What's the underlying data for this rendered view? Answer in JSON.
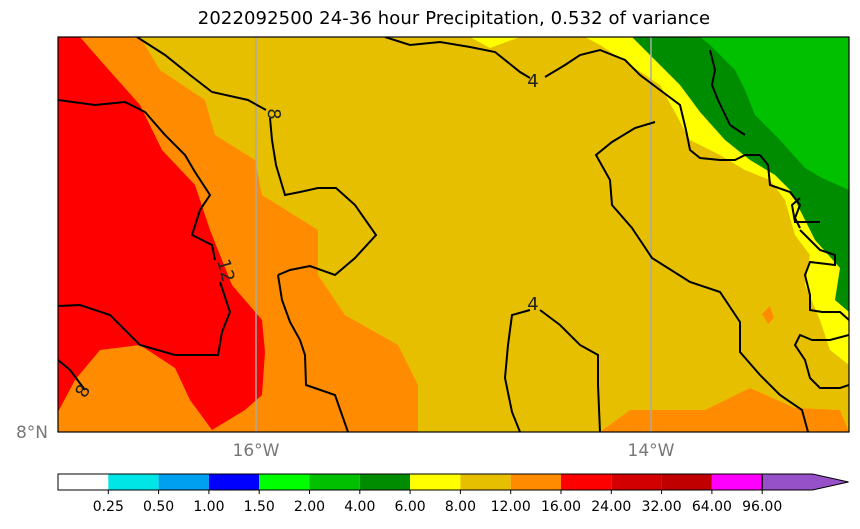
{
  "title": "2022092500 24-36 hour Precipitation, 0.532 of variance",
  "axes": {
    "x_ticks": [
      "16°W",
      "14°W"
    ],
    "y_ticks": [
      "8°N"
    ]
  },
  "contour_labels": [
    "4",
    "4",
    "8",
    "8",
    "12"
  ],
  "colorbar": {
    "labels": [
      "0.25",
      "0.50",
      "1.00",
      "1.50",
      "2.00",
      "4.00",
      "6.00",
      "8.00",
      "12.00",
      "16.00",
      "24.00",
      "32.00",
      "64.00",
      "96.00"
    ],
    "colors": [
      "#ffffff",
      "#00e6e6",
      "#00a0f0",
      "#0000ff",
      "#00ff00",
      "#00c000",
      "#008c00",
      "#ffff00",
      "#e6c000",
      "#ff8c00",
      "#ff0000",
      "#d20000",
      "#c00000",
      "#ff00ff",
      "#9650c8"
    ]
  },
  "palette": {
    "red": "#ff0000",
    "orange": "#ff8c00",
    "gold": "#e6c000",
    "yellow": "#ffff00",
    "green_dark": "#008c00",
    "green": "#00c000"
  }
}
